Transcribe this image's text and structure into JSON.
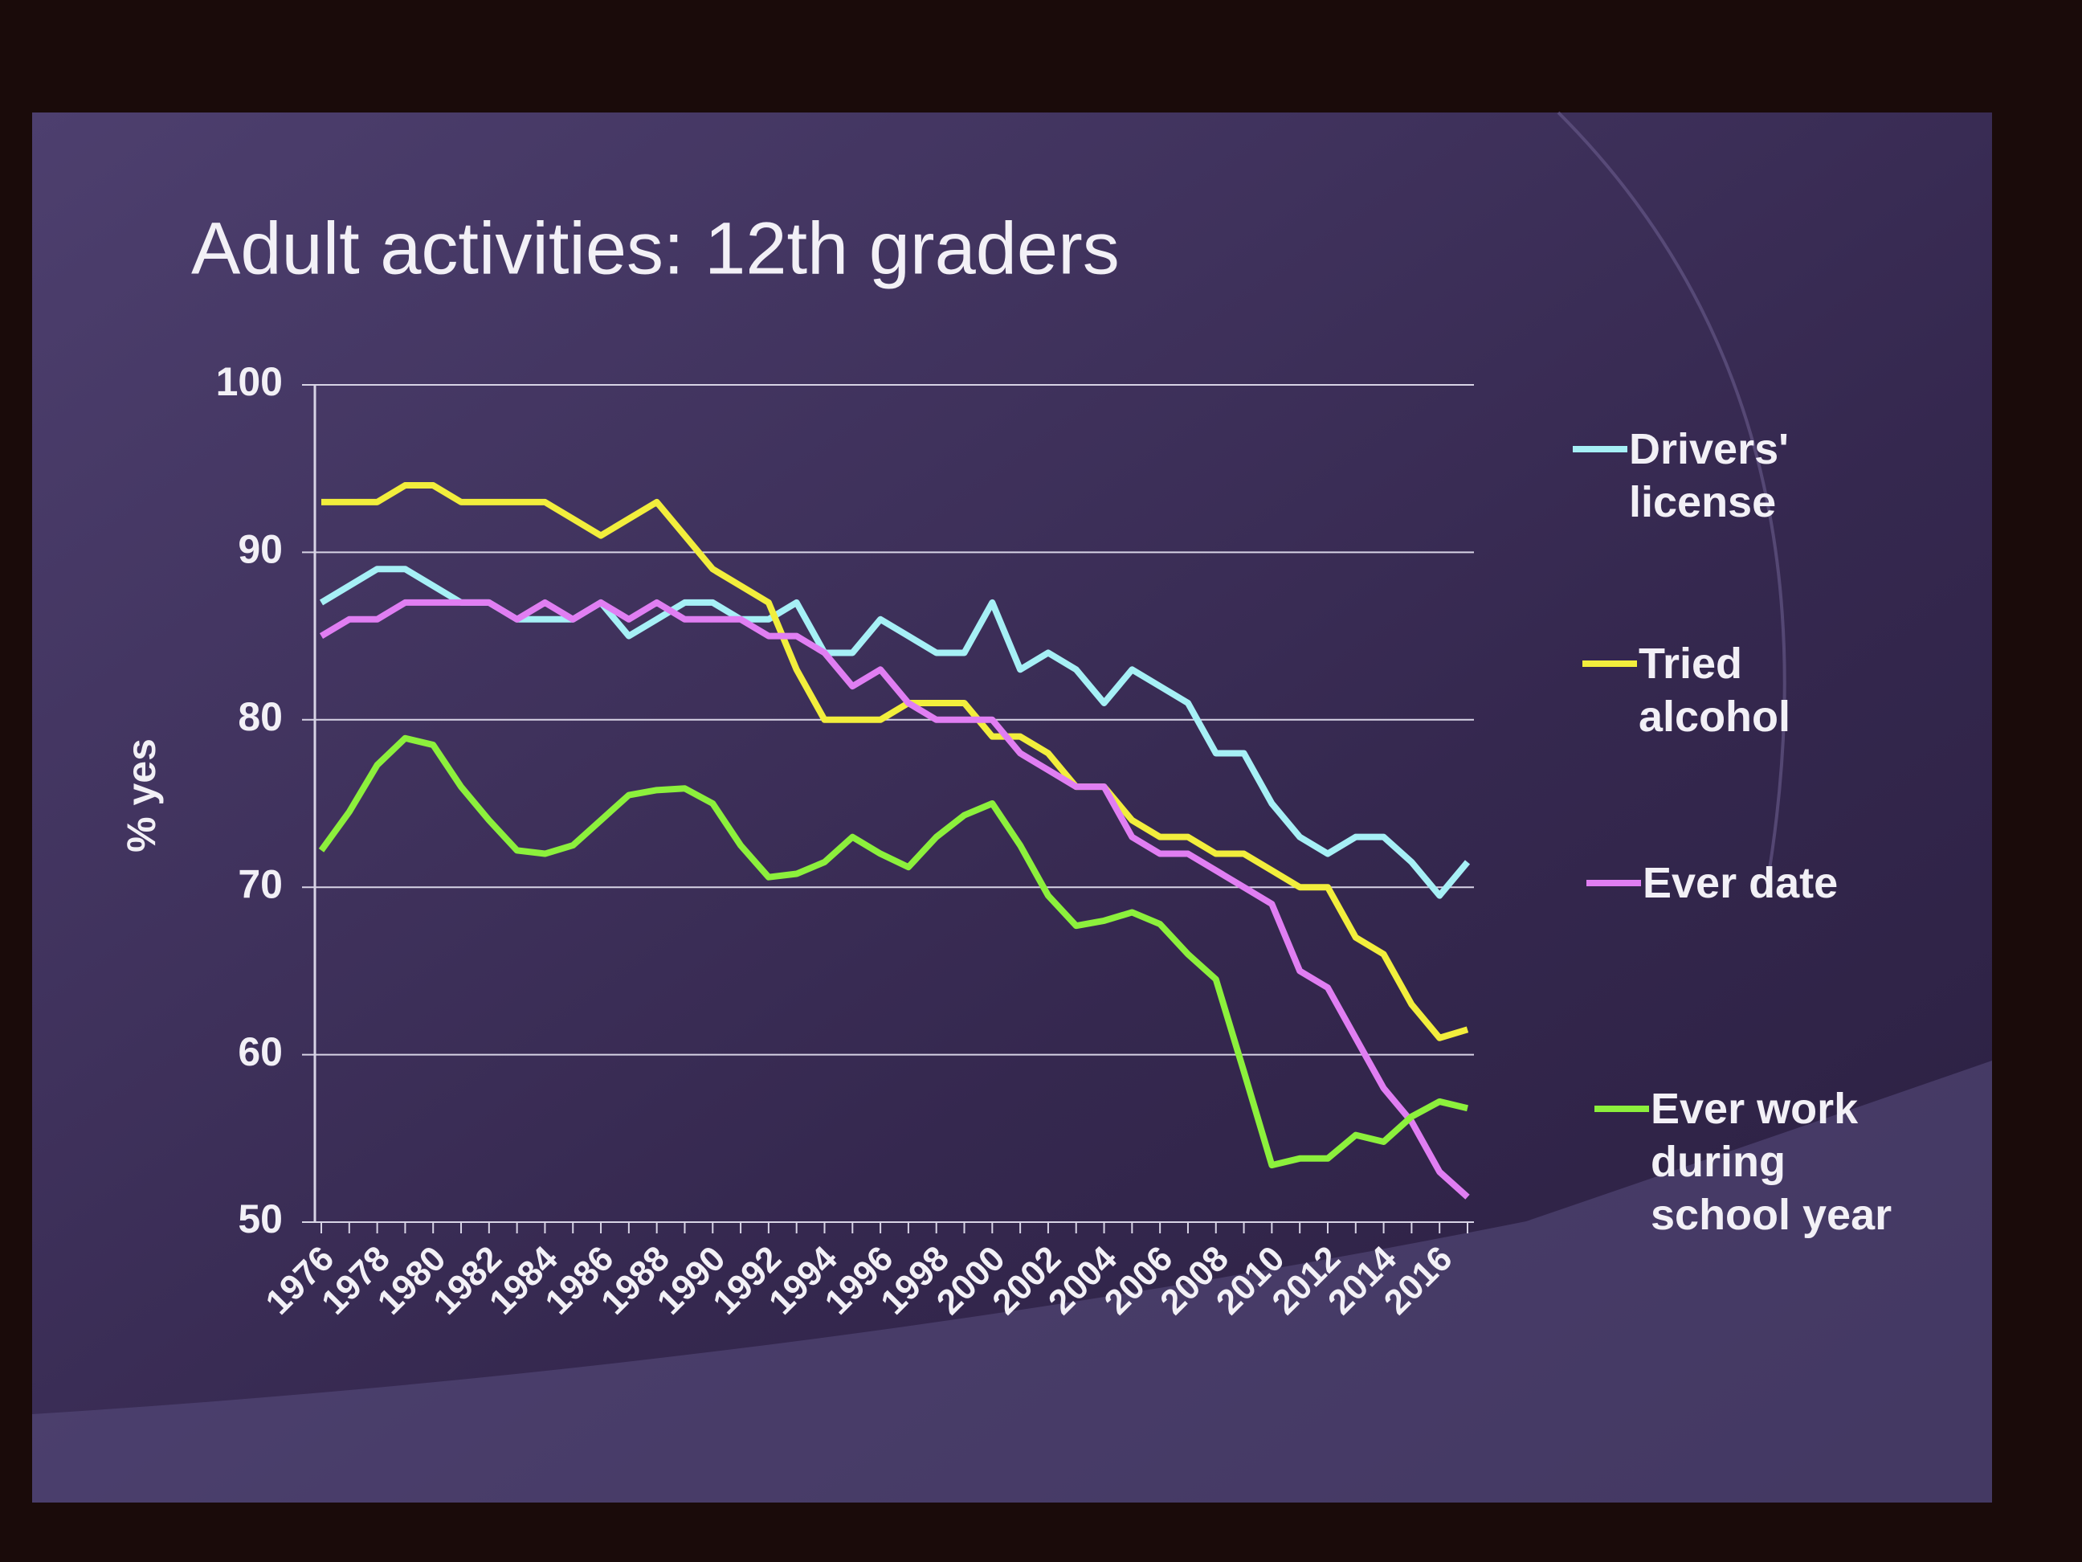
{
  "chart_data": {
    "type": "line",
    "title": "Adult activities: 12th graders",
    "y_label": "% yes",
    "categories": [
      "1976",
      null,
      "1978",
      null,
      "1980",
      null,
      "1982",
      null,
      "1984",
      null,
      "1986",
      null,
      "1988",
      null,
      "1990",
      null,
      "1992",
      null,
      "1994",
      null,
      "1996",
      null,
      "1998",
      null,
      "2000",
      null,
      "2002",
      null,
      "2004",
      null,
      "2006",
      null,
      "2008",
      null,
      "2010",
      null,
      "2012",
      null,
      "2014",
      null,
      "2016",
      null
    ],
    "ylim": [
      50,
      100
    ],
    "yticks": [
      50,
      60,
      70,
      80,
      90,
      100
    ],
    "grid": true,
    "series": [
      {
        "name": "Drivers' license",
        "color": "#a6f0f6",
        "values": [
          87,
          88,
          89,
          89,
          88,
          87,
          87,
          86,
          86,
          86,
          87,
          85,
          86,
          87,
          87,
          86,
          86,
          87,
          84,
          84,
          86,
          85,
          84,
          84,
          87,
          83,
          84,
          83,
          81,
          83,
          82,
          81,
          78,
          78,
          75,
          73,
          72,
          73,
          73,
          71.5,
          69.5,
          71.5
        ]
      },
      {
        "name": "Tried alcohol",
        "color": "#f2ee3c",
        "values": [
          93,
          93,
          93,
          94,
          94,
          93,
          93,
          93,
          93,
          92,
          91,
          92,
          93,
          91,
          89,
          88,
          87,
          83,
          80,
          80,
          80,
          81,
          81,
          81,
          79,
          79,
          78,
          76,
          76,
          74,
          73,
          73,
          72,
          72,
          71,
          70,
          70,
          67,
          66,
          63,
          61,
          61.5
        ]
      },
      {
        "name": "Ever date",
        "color": "#e07ef2",
        "values": [
          85,
          86,
          86,
          87,
          87,
          87,
          87,
          86,
          87,
          86,
          87,
          86,
          87,
          86,
          86,
          86,
          85,
          85,
          84,
          82,
          83,
          81,
          80,
          80,
          80,
          78,
          77,
          76,
          76,
          73,
          72,
          72,
          71,
          70,
          69,
          65,
          64,
          61,
          58,
          56,
          53,
          51.5
        ]
      },
      {
        "name": "Ever work during school year",
        "color": "#8cf03c",
        "values": [
          72.2,
          74.5,
          77.3,
          78.9,
          78.5,
          76,
          74,
          72.2,
          72,
          72.5,
          74,
          75.5,
          75.8,
          75.9,
          75,
          72.5,
          70.6,
          70.8,
          71.5,
          73,
          72,
          71.2,
          73,
          74.3,
          75,
          72.5,
          69.5,
          67.7,
          68,
          68.5,
          67.8,
          66,
          64.5,
          59,
          53.4,
          53.8,
          53.8,
          55.2,
          54.8,
          56.3,
          57.2,
          56.8
        ]
      }
    ]
  }
}
